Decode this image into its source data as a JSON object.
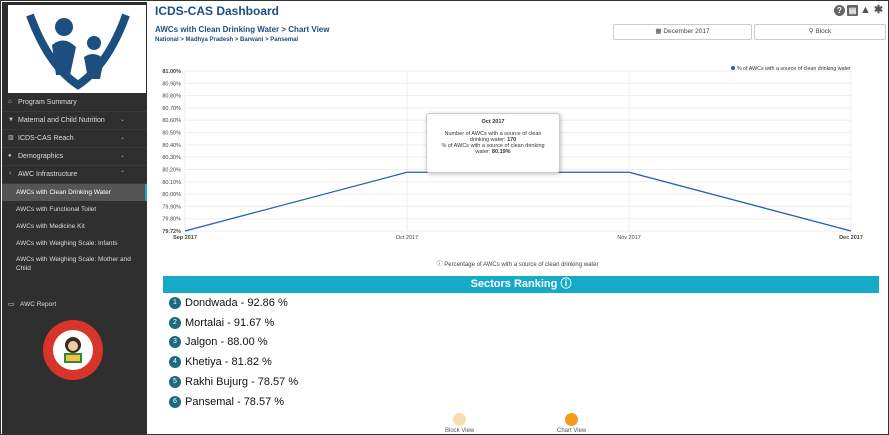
{
  "app": {
    "title": "ICDS-CAS Dashboard"
  },
  "top_icons": [
    "help-icon",
    "print-icon",
    "warning-icon",
    "gear-icon"
  ],
  "sidebar": {
    "items": [
      {
        "label": "Program Summary",
        "icon": "home-icon"
      },
      {
        "label": "Maternal and Child Nutrition",
        "icon": "bowl-icon"
      },
      {
        "label": "ICDS-CAS Reach",
        "icon": "bar-chart-icon"
      },
      {
        "label": "Demographics",
        "icon": "users-icon"
      },
      {
        "label": "AWC Infrastructure",
        "icon": "building-icon"
      }
    ],
    "sub_items": [
      "AWCs with Clean Drinking Water",
      "AWCs with Functional Toilet",
      "AWCs with Medicine Kit",
      "AWCs with Weighing Scale: Infants",
      "AWCs with Weighing Scale: Mother and Child"
    ],
    "awc_report": "AWC Report"
  },
  "page": {
    "heading": "AWCs with Clean Drinking Water > Chart View",
    "breadcrumb": "National > Madhya Pradesh > Barwani > Pansemal"
  },
  "filters": {
    "month": "December 2017",
    "level": "Block"
  },
  "chart_data": {
    "type": "line",
    "categories": [
      "Sep 2017",
      "Oct 2017",
      "Nov 2017",
      "Dec 2017"
    ],
    "series": [
      {
        "name": "% of AWCs with a source of clean drinking water",
        "values": [
          79.72,
          80.19,
          80.19,
          79.72
        ],
        "color": "#1f5fbf"
      }
    ],
    "y_ticks": [
      "81.00%",
      "80.90%",
      "80.80%",
      "80.70%",
      "80.60%",
      "80.50%",
      "80.40%",
      "80.30%",
      "80.20%",
      "80.10%",
      "80.00%",
      "79.90%",
      "79.80%",
      "79.72%"
    ],
    "ylim": [
      79.72,
      81.0
    ],
    "legend_position": "top-right",
    "grid": true
  },
  "tooltip": {
    "title": "Oct 2017",
    "line1": "Number of AWCs with a source of clean",
    "line2_label": "drinking water:",
    "line2_value": "170",
    "line3": "% of AWCs with a source of clean drinking",
    "line4_label": "water:",
    "line4_value": "80.19%"
  },
  "chart_caption": "Percentage of AWCs with a source of clean drinking water",
  "ranking": {
    "title": "Sectors Ranking",
    "rows": [
      {
        "rank": "1",
        "text": "Dondwada - 92.86 %"
      },
      {
        "rank": "2",
        "text": "Mortalai - 91.67 %"
      },
      {
        "rank": "3",
        "text": "Jalgon - 88.00 %"
      },
      {
        "rank": "4",
        "text": "Khetiya - 81.82 %"
      },
      {
        "rank": "5",
        "text": "Rakhi Bujurg - 78.57 %"
      },
      {
        "rank": "6",
        "text": "Pansemal - 78.57 %"
      }
    ]
  },
  "views": {
    "block_view": "Block View",
    "chart_view": "Chart View",
    "inactive_color": "#f5dfb0",
    "active_color": "#f59a1b"
  }
}
